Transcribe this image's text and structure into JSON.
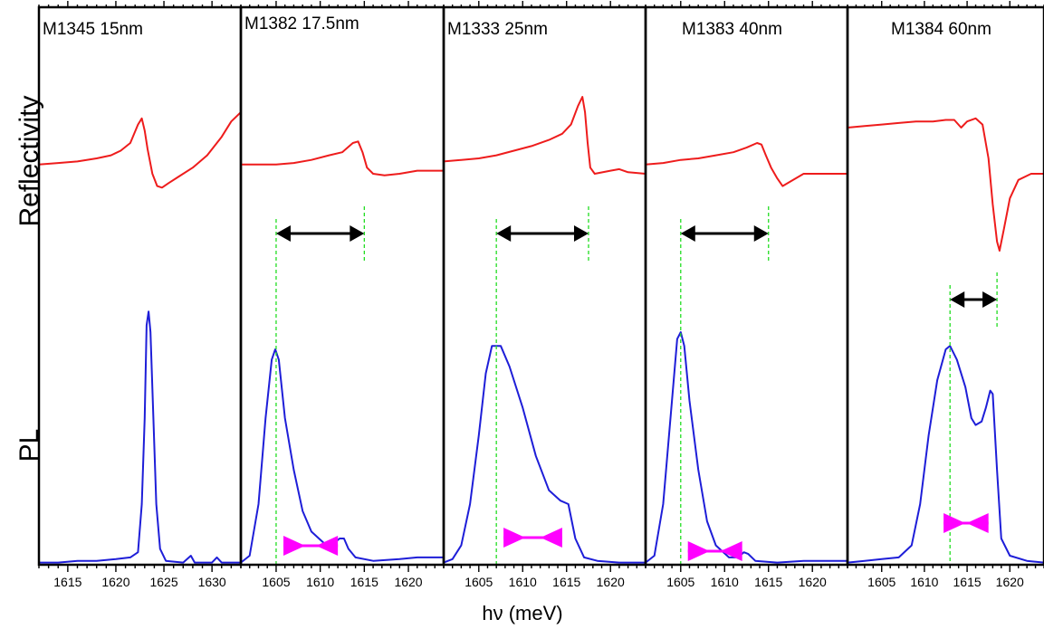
{
  "chart_data": {
    "type": "line",
    "ylabel_top": "Reflectivity",
    "ylabel_bottom": "PL",
    "xlabel": "hν (meV)",
    "colors": {
      "reflectivity": "#ee1c1c",
      "pl": "#1e1ed8",
      "marker": "#22dd22",
      "arrow": "#000000",
      "linewidth_bar": "#ff00ff"
    },
    "panels": [
      {
        "title": "M1345 15nm",
        "xlim": [
          1612,
          1633
        ],
        "xticks": [
          1615,
          1620,
          1625,
          1630
        ],
        "reflectivity": [
          [
            1612,
            0.73
          ],
          [
            1614,
            0.735
          ],
          [
            1616,
            0.74
          ],
          [
            1618,
            0.75
          ],
          [
            1619.5,
            0.76
          ],
          [
            1620.5,
            0.775
          ],
          [
            1621.5,
            0.8
          ],
          [
            1622.3,
            0.86
          ],
          [
            1622.7,
            0.88
          ],
          [
            1623.0,
            0.84
          ],
          [
            1623.3,
            0.78
          ],
          [
            1623.8,
            0.7
          ],
          [
            1624.3,
            0.66
          ],
          [
            1624.8,
            0.655
          ],
          [
            1625.5,
            0.67
          ],
          [
            1626.5,
            0.69
          ],
          [
            1628,
            0.72
          ],
          [
            1629.5,
            0.76
          ],
          [
            1631,
            0.82
          ],
          [
            1632,
            0.87
          ],
          [
            1633,
            0.9
          ]
        ],
        "pl": [
          [
            1612,
            0.03
          ],
          [
            1614,
            0.03
          ],
          [
            1616,
            0.035
          ],
          [
            1618,
            0.035
          ],
          [
            1620,
            0.04
          ],
          [
            1621.5,
            0.045
          ],
          [
            1622.3,
            0.06
          ],
          [
            1622.7,
            0.2
          ],
          [
            1623.0,
            0.45
          ],
          [
            1623.2,
            0.72
          ],
          [
            1623.4,
            0.76
          ],
          [
            1623.6,
            0.7
          ],
          [
            1623.9,
            0.45
          ],
          [
            1624.2,
            0.2
          ],
          [
            1624.6,
            0.07
          ],
          [
            1625.2,
            0.035
          ],
          [
            1627,
            0.03
          ],
          [
            1627.8,
            0.05
          ],
          [
            1628.2,
            0.03
          ],
          [
            1630,
            0.03
          ],
          [
            1630.5,
            0.045
          ],
          [
            1631,
            0.03
          ],
          [
            1633,
            0.03
          ]
        ]
      },
      {
        "title": "M1382 17.5nm",
        "xlim": [
          1601,
          1624
        ],
        "xticks": [
          1605,
          1610,
          1615,
          1620
        ],
        "reflectivity": [
          [
            1601,
            0.73
          ],
          [
            1603,
            0.73
          ],
          [
            1605,
            0.73
          ],
          [
            1607,
            0.735
          ],
          [
            1609,
            0.745
          ],
          [
            1611,
            0.76
          ],
          [
            1612.5,
            0.77
          ],
          [
            1613.7,
            0.8
          ],
          [
            1614.3,
            0.805
          ],
          [
            1614.8,
            0.77
          ],
          [
            1615.3,
            0.72
          ],
          [
            1616,
            0.7
          ],
          [
            1617.3,
            0.695
          ],
          [
            1619,
            0.7
          ],
          [
            1621,
            0.71
          ],
          [
            1624,
            0.71
          ]
        ],
        "pl": [
          [
            1601,
            0.03
          ],
          [
            1602,
            0.05
          ],
          [
            1603,
            0.2
          ],
          [
            1603.8,
            0.45
          ],
          [
            1604.5,
            0.62
          ],
          [
            1604.9,
            0.65
          ],
          [
            1605.3,
            0.62
          ],
          [
            1606,
            0.45
          ],
          [
            1607,
            0.3
          ],
          [
            1608,
            0.18
          ],
          [
            1609,
            0.12
          ],
          [
            1610.5,
            0.085
          ],
          [
            1611.5,
            0.085
          ],
          [
            1612.2,
            0.1
          ],
          [
            1612.7,
            0.1
          ],
          [
            1613.2,
            0.07
          ],
          [
            1614,
            0.045
          ],
          [
            1616,
            0.035
          ],
          [
            1619,
            0.04
          ],
          [
            1621,
            0.045
          ],
          [
            1624,
            0.045
          ]
        ],
        "arrow_x": [
          1605,
          1615
        ],
        "pl_peak_x": 1605,
        "bar_x": [
          1608.5,
          1612
        ]
      },
      {
        "title": "M1333 25nm",
        "xlim": [
          1601,
          1624
        ],
        "xticks": [
          1605,
          1610,
          1615,
          1620
        ],
        "reflectivity": [
          [
            1601,
            0.74
          ],
          [
            1603,
            0.745
          ],
          [
            1605,
            0.75
          ],
          [
            1607,
            0.76
          ],
          [
            1609,
            0.775
          ],
          [
            1611,
            0.79
          ],
          [
            1613,
            0.81
          ],
          [
            1614.5,
            0.83
          ],
          [
            1615.5,
            0.86
          ],
          [
            1616.3,
            0.92
          ],
          [
            1616.8,
            0.95
          ],
          [
            1617.1,
            0.9
          ],
          [
            1617.4,
            0.8
          ],
          [
            1617.7,
            0.72
          ],
          [
            1618.2,
            0.7
          ],
          [
            1620,
            0.71
          ],
          [
            1621,
            0.715
          ],
          [
            1622,
            0.705
          ],
          [
            1624,
            0.7
          ]
        ],
        "pl": [
          [
            1601,
            0.03
          ],
          [
            1602,
            0.04
          ],
          [
            1603,
            0.08
          ],
          [
            1604,
            0.2
          ],
          [
            1605,
            0.4
          ],
          [
            1605.8,
            0.58
          ],
          [
            1606.5,
            0.66
          ],
          [
            1607.5,
            0.66
          ],
          [
            1608.5,
            0.6
          ],
          [
            1610,
            0.48
          ],
          [
            1611.5,
            0.34
          ],
          [
            1613,
            0.24
          ],
          [
            1614.3,
            0.21
          ],
          [
            1615.2,
            0.2
          ],
          [
            1616,
            0.1
          ],
          [
            1617,
            0.045
          ],
          [
            1618.5,
            0.035
          ],
          [
            1621,
            0.03
          ],
          [
            1624,
            0.03
          ]
        ],
        "arrow_x": [
          1607,
          1617.5
        ],
        "pl_peak_x": 1607,
        "bar_x": [
          1610.5,
          1614.5
        ]
      },
      {
        "title": "M1383 40nm",
        "xlim": [
          1601,
          1624
        ],
        "xticks": [
          1605,
          1610,
          1615,
          1620
        ],
        "reflectivity": [
          [
            1601,
            0.73
          ],
          [
            1603,
            0.735
          ],
          [
            1605,
            0.745
          ],
          [
            1607,
            0.75
          ],
          [
            1609,
            0.76
          ],
          [
            1611,
            0.77
          ],
          [
            1612.5,
            0.785
          ],
          [
            1613.7,
            0.8
          ],
          [
            1614.2,
            0.795
          ],
          [
            1614.7,
            0.76
          ],
          [
            1615.3,
            0.72
          ],
          [
            1616,
            0.685
          ],
          [
            1616.6,
            0.66
          ],
          [
            1617.5,
            0.675
          ],
          [
            1619,
            0.7
          ],
          [
            1621,
            0.7
          ],
          [
            1624,
            0.7
          ]
        ],
        "pl": [
          [
            1601,
            0.03
          ],
          [
            1602,
            0.05
          ],
          [
            1603,
            0.2
          ],
          [
            1604,
            0.5
          ],
          [
            1604.6,
            0.68
          ],
          [
            1605,
            0.7
          ],
          [
            1605.4,
            0.66
          ],
          [
            1606,
            0.5
          ],
          [
            1607,
            0.3
          ],
          [
            1608,
            0.15
          ],
          [
            1609,
            0.08
          ],
          [
            1610.5,
            0.045
          ],
          [
            1611.5,
            0.045
          ],
          [
            1612.2,
            0.06
          ],
          [
            1612.7,
            0.055
          ],
          [
            1613.5,
            0.035
          ],
          [
            1616,
            0.03
          ],
          [
            1619,
            0.035
          ],
          [
            1622,
            0.035
          ],
          [
            1624,
            0.035
          ]
        ],
        "arrow_x": [
          1605,
          1615
        ],
        "pl_peak_x": 1605,
        "bar_x": [
          1608.5,
          1612
        ]
      },
      {
        "title": "M1384 60nm",
        "xlim": [
          1601,
          1624
        ],
        "xticks": [
          1605,
          1610,
          1615,
          1620
        ],
        "reflectivity": [
          [
            1601,
            0.85
          ],
          [
            1603,
            0.855
          ],
          [
            1605,
            0.86
          ],
          [
            1607,
            0.865
          ],
          [
            1609,
            0.87
          ],
          [
            1611,
            0.87
          ],
          [
            1612.5,
            0.875
          ],
          [
            1613.5,
            0.875
          ],
          [
            1614.3,
            0.85
          ],
          [
            1615,
            0.87
          ],
          [
            1616,
            0.88
          ],
          [
            1616.8,
            0.86
          ],
          [
            1617.5,
            0.75
          ],
          [
            1618,
            0.6
          ],
          [
            1618.5,
            0.48
          ],
          [
            1618.8,
            0.45
          ],
          [
            1619.3,
            0.52
          ],
          [
            1620,
            0.62
          ],
          [
            1621,
            0.68
          ],
          [
            1622.5,
            0.7
          ],
          [
            1624,
            0.7
          ]
        ],
        "pl": [
          [
            1601,
            0.03
          ],
          [
            1603,
            0.035
          ],
          [
            1605,
            0.04
          ],
          [
            1607,
            0.045
          ],
          [
            1608.5,
            0.08
          ],
          [
            1609.5,
            0.2
          ],
          [
            1610.5,
            0.4
          ],
          [
            1611.5,
            0.56
          ],
          [
            1612.5,
            0.65
          ],
          [
            1613,
            0.66
          ],
          [
            1613.8,
            0.62
          ],
          [
            1614.8,
            0.54
          ],
          [
            1615.5,
            0.45
          ],
          [
            1616,
            0.43
          ],
          [
            1616.7,
            0.44
          ],
          [
            1617.2,
            0.48
          ],
          [
            1617.7,
            0.53
          ],
          [
            1618,
            0.52
          ],
          [
            1618.5,
            0.3
          ],
          [
            1619,
            0.1
          ],
          [
            1620,
            0.05
          ],
          [
            1622,
            0.035
          ],
          [
            1624,
            0.03
          ]
        ],
        "arrow_x": [
          1613,
          1618.5
        ],
        "pl_peak_x": 1613,
        "bar_x": [
          1615,
          1617.5
        ]
      }
    ]
  }
}
